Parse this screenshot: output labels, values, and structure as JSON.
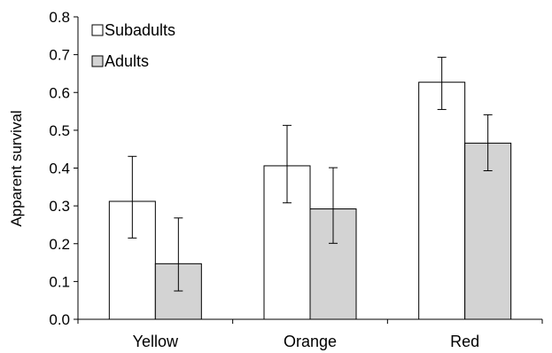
{
  "chart_data": {
    "type": "bar",
    "title": "",
    "xlabel": "",
    "ylabel": "Apparent survival",
    "ylim": [
      0,
      0.8
    ],
    "yticks": [
      "0.0",
      "0.1",
      "0.2",
      "0.3",
      "0.4",
      "0.5",
      "0.6",
      "0.7",
      "0.8"
    ],
    "categories": [
      "Yellow",
      "Orange",
      "Red"
    ],
    "grid": false,
    "legend_position": "top-left",
    "series": [
      {
        "name": "Subadults",
        "color": "#ffffff",
        "values": [
          0.312,
          0.406,
          0.627
        ],
        "error_low": [
          0.215,
          0.308,
          0.555
        ],
        "error_high": [
          0.431,
          0.513,
          0.693
        ]
      },
      {
        "name": "Adults",
        "color": "#d3d3d3",
        "values": [
          0.147,
          0.292,
          0.466
        ],
        "error_low": [
          0.075,
          0.201,
          0.393
        ],
        "error_high": [
          0.268,
          0.401,
          0.541
        ]
      }
    ]
  }
}
